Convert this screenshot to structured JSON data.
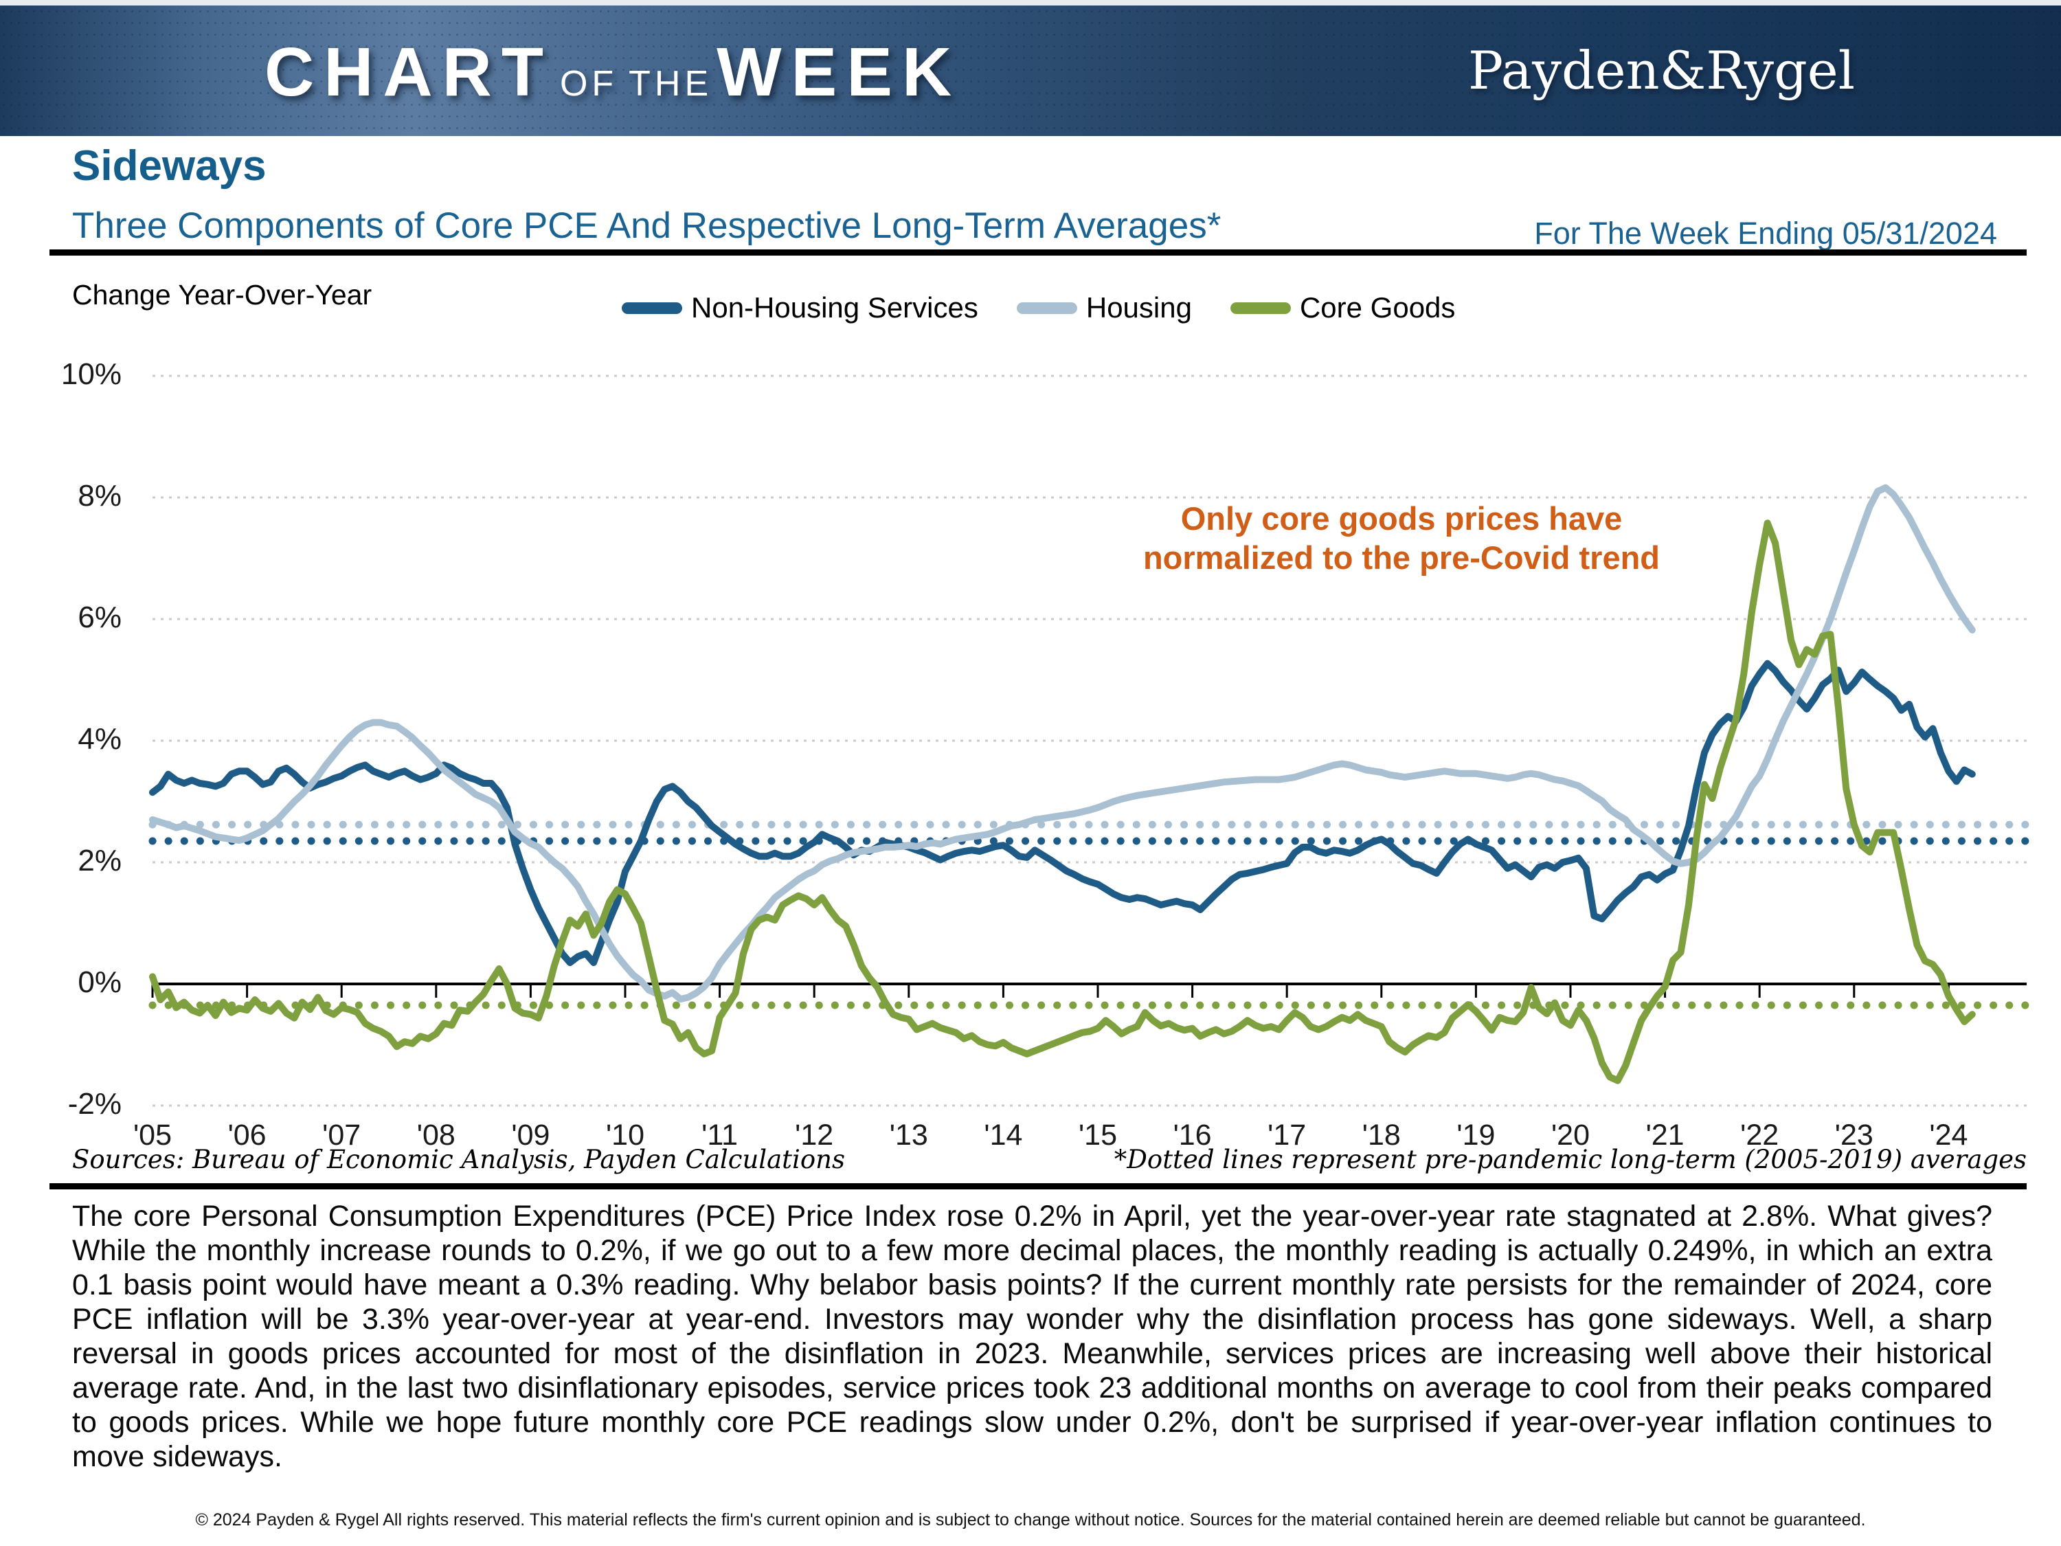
{
  "header": {
    "wordmark_chart": "CHART",
    "wordmark_of": "OF",
    "wordmark_the": "THE",
    "wordmark_week": "WEEK",
    "logo": "Payden&Rygel"
  },
  "title": {
    "main": "Sideways",
    "subtitle": "Three Components of Core PCE And Respective Long-Term Averages*",
    "week_ending": "For The Week Ending 05/31/2024",
    "accent_color": "#155E8C"
  },
  "annotation": {
    "line1": "Only core goods prices have",
    "line2": "normalized to the pre-Covid trend",
    "color": "#D05E17"
  },
  "sources": {
    "left": "Sources: Bureau of Economic Analysis, Payden Calculations",
    "right": "*Dotted lines represent pre-pandemic long-term (2005-2019) averages"
  },
  "body": {
    "text": "The core Personal Consumption Expenditures (PCE) Price Index rose 0.2% in April, yet the year-over-year rate stagnated at 2.8%. What gives? While the monthly increase rounds to 0.2%, if we go out to a few more decimal places, the monthly reading is actually 0.249%, in which an extra 0.1 basis point would have meant a 0.3% reading. Why belabor basis points? If the current monthly rate persists for the remainder of 2024, core PCE inflation will be 3.3% year-over-year at year-end. Investors may wonder why the disinflation process has gone sideways. Well, a sharp reversal in goods prices accounted for most of the disinflation in 2023. Meanwhile, services prices are increasing well above their historical average rate. And, in the last two disinflationary episodes, service prices took 23 additional months on average to cool from their peaks compared to goods prices. While we hope future monthly core PCE readings slow under 0.2%, don't be surprised if year-over-year inflation continues to move sideways."
  },
  "footer": {
    "text": "© 2024 Payden & Rygel All rights reserved. This material reflects the firm's current opinion and is subject to change without notice. Sources for the material contained herein are deemed reliable but cannot be guaranteed."
  },
  "chart_data": {
    "type": "line",
    "ylabel": "Change Year-Over-Year",
    "x_start_year": 2005,
    "x_step_months": 1,
    "x_tick_labels": [
      "'05",
      "'06",
      "'07",
      "'08",
      "'09",
      "'10",
      "'11",
      "'12",
      "'13",
      "'14",
      "'15",
      "'16",
      "'17",
      "'18",
      "'19",
      "'20",
      "'21",
      "'22",
      "'23",
      "'24"
    ],
    "y_tick_labels": [
      "10%",
      "8%",
      "6%",
      "4%",
      "2%",
      "0%",
      "-2%"
    ],
    "y_tick_values": [
      10,
      8,
      6,
      4,
      2,
      0,
      -2
    ],
    "ylim": [
      -2,
      10
    ],
    "grid": "dotted-horizontal",
    "legend_position": "top-center",
    "gridline_color": "#cbcbcb",
    "legend": [
      {
        "label": "Non-Housing Services",
        "color": "#1F5B87"
      },
      {
        "label": "Housing",
        "color": "#A9C0D3"
      },
      {
        "label": "Core Goods",
        "color": "#7FA03F"
      }
    ],
    "averages_note": "Dotted lines represent pre-pandemic long-term (2005-2019) averages",
    "averages": [
      {
        "name": "Non-Housing Services average",
        "value": 2.35,
        "color": "#1F5B87"
      },
      {
        "name": "Housing average",
        "value": 2.62,
        "color": "#A9C0D3"
      },
      {
        "name": "Core Goods average",
        "value": -0.35,
        "color": "#7FA03F"
      }
    ],
    "series": [
      {
        "name": "Non-Housing Services",
        "color": "#1F5B87",
        "values": [
          3.15,
          3.25,
          3.45,
          3.35,
          3.3,
          3.35,
          3.3,
          3.28,
          3.25,
          3.3,
          3.45,
          3.5,
          3.5,
          3.4,
          3.28,
          3.32,
          3.5,
          3.55,
          3.45,
          3.32,
          3.22,
          3.28,
          3.32,
          3.38,
          3.42,
          3.5,
          3.56,
          3.6,
          3.5,
          3.45,
          3.4,
          3.46,
          3.5,
          3.42,
          3.36,
          3.4,
          3.46,
          3.6,
          3.55,
          3.46,
          3.4,
          3.36,
          3.3,
          3.3,
          3.15,
          2.9,
          2.3,
          1.9,
          1.55,
          1.25,
          1.0,
          0.75,
          0.5,
          0.35,
          0.45,
          0.5,
          0.35,
          0.7,
          1.05,
          1.35,
          1.85,
          2.1,
          2.35,
          2.7,
          3.0,
          3.2,
          3.25,
          3.15,
          3.0,
          2.9,
          2.75,
          2.6,
          2.5,
          2.4,
          2.3,
          2.22,
          2.15,
          2.1,
          2.1,
          2.15,
          2.1,
          2.1,
          2.15,
          2.25,
          2.33,
          2.46,
          2.4,
          2.35,
          2.25,
          2.12,
          2.2,
          2.18,
          2.25,
          2.33,
          2.3,
          2.28,
          2.25,
          2.2,
          2.16,
          2.1,
          2.04,
          2.1,
          2.15,
          2.18,
          2.2,
          2.18,
          2.22,
          2.26,
          2.28,
          2.2,
          2.1,
          2.08,
          2.2,
          2.12,
          2.04,
          1.95,
          1.86,
          1.8,
          1.73,
          1.68,
          1.64,
          1.56,
          1.48,
          1.42,
          1.39,
          1.42,
          1.4,
          1.35,
          1.3,
          1.33,
          1.36,
          1.32,
          1.3,
          1.22,
          1.35,
          1.48,
          1.6,
          1.72,
          1.8,
          1.82,
          1.85,
          1.88,
          1.92,
          1.95,
          1.98,
          2.16,
          2.25,
          2.25,
          2.18,
          2.15,
          2.2,
          2.18,
          2.15,
          2.2,
          2.28,
          2.34,
          2.38,
          2.3,
          2.18,
          2.08,
          1.98,
          1.95,
          1.88,
          1.82,
          2.0,
          2.17,
          2.3,
          2.38,
          2.3,
          2.25,
          2.2,
          2.05,
          1.9,
          1.96,
          1.86,
          1.76,
          1.92,
          1.96,
          1.9,
          2.0,
          2.03,
          2.07,
          1.9,
          1.12,
          1.07,
          1.22,
          1.38,
          1.5,
          1.6,
          1.76,
          1.8,
          1.71,
          1.81,
          1.87,
          2.2,
          2.6,
          3.25,
          3.8,
          4.1,
          4.28,
          4.4,
          4.32,
          4.55,
          4.9,
          5.1,
          5.27,
          5.15,
          4.97,
          4.83,
          4.66,
          4.52,
          4.7,
          4.92,
          5.02,
          5.16,
          4.81,
          4.95,
          5.13,
          5.01,
          4.9,
          4.81,
          4.7,
          4.5,
          4.6,
          4.22,
          4.06,
          4.2,
          3.8,
          3.5,
          3.33,
          3.52,
          3.45
        ]
      },
      {
        "name": "Housing",
        "color": "#A9C0D3",
        "values": [
          2.7,
          2.66,
          2.62,
          2.57,
          2.6,
          2.56,
          2.52,
          2.47,
          2.42,
          2.4,
          2.38,
          2.36,
          2.4,
          2.46,
          2.52,
          2.62,
          2.72,
          2.86,
          3.0,
          3.12,
          3.26,
          3.42,
          3.6,
          3.76,
          3.92,
          4.06,
          4.18,
          4.26,
          4.3,
          4.3,
          4.26,
          4.24,
          4.15,
          4.05,
          3.92,
          3.8,
          3.66,
          3.52,
          3.42,
          3.32,
          3.22,
          3.12,
          3.06,
          3.0,
          2.9,
          2.7,
          2.5,
          2.4,
          2.31,
          2.25,
          2.12,
          2.0,
          1.9,
          1.76,
          1.6,
          1.36,
          1.15,
          0.9,
          0.66,
          0.46,
          0.3,
          0.15,
          0.05,
          -0.1,
          -0.16,
          -0.2,
          -0.14,
          -0.25,
          -0.22,
          -0.15,
          -0.05,
          0.1,
          0.33,
          0.5,
          0.66,
          0.82,
          0.96,
          1.12,
          1.26,
          1.42,
          1.52,
          1.62,
          1.72,
          1.8,
          1.86,
          1.96,
          2.02,
          2.06,
          2.12,
          2.16,
          2.18,
          2.2,
          2.22,
          2.25,
          2.25,
          2.26,
          2.28,
          2.26,
          2.3,
          2.32,
          2.3,
          2.34,
          2.38,
          2.4,
          2.42,
          2.44,
          2.46,
          2.5,
          2.55,
          2.6,
          2.62,
          2.66,
          2.7,
          2.72,
          2.74,
          2.76,
          2.78,
          2.8,
          2.83,
          2.86,
          2.9,
          2.95,
          3.0,
          3.04,
          3.07,
          3.1,
          3.12,
          3.14,
          3.16,
          3.18,
          3.2,
          3.22,
          3.24,
          3.26,
          3.28,
          3.3,
          3.32,
          3.33,
          3.34,
          3.35,
          3.36,
          3.36,
          3.36,
          3.36,
          3.38,
          3.4,
          3.44,
          3.48,
          3.52,
          3.56,
          3.6,
          3.62,
          3.6,
          3.56,
          3.52,
          3.5,
          3.48,
          3.44,
          3.42,
          3.4,
          3.42,
          3.44,
          3.46,
          3.48,
          3.5,
          3.48,
          3.46,
          3.46,
          3.46,
          3.44,
          3.42,
          3.4,
          3.38,
          3.4,
          3.44,
          3.46,
          3.44,
          3.4,
          3.36,
          3.34,
          3.3,
          3.26,
          3.18,
          3.09,
          3.01,
          2.87,
          2.78,
          2.7,
          2.54,
          2.45,
          2.35,
          2.23,
          2.12,
          2.02,
          1.98,
          2.0,
          2.05,
          2.16,
          2.3,
          2.41,
          2.58,
          2.75,
          3.0,
          3.25,
          3.42,
          3.7,
          4.02,
          4.32,
          4.58,
          4.84,
          5.1,
          5.38,
          5.68,
          6.0,
          6.38,
          6.76,
          7.12,
          7.5,
          7.85,
          8.1,
          8.16,
          8.05,
          7.87,
          7.67,
          7.42,
          7.16,
          6.92,
          6.66,
          6.42,
          6.2,
          6.0,
          5.82
        ]
      },
      {
        "name": "Core Goods",
        "color": "#7FA03F",
        "values": [
          0.12,
          -0.26,
          -0.13,
          -0.39,
          -0.3,
          -0.43,
          -0.48,
          -0.35,
          -0.52,
          -0.3,
          -0.47,
          -0.4,
          -0.43,
          -0.26,
          -0.4,
          -0.45,
          -0.32,
          -0.48,
          -0.56,
          -0.3,
          -0.42,
          -0.22,
          -0.44,
          -0.5,
          -0.39,
          -0.42,
          -0.47,
          -0.65,
          -0.73,
          -0.78,
          -0.86,
          -1.03,
          -0.95,
          -0.98,
          -0.86,
          -0.9,
          -0.82,
          -0.65,
          -0.68,
          -0.43,
          -0.45,
          -0.3,
          -0.17,
          0.05,
          0.25,
          0.0,
          -0.4,
          -0.48,
          -0.5,
          -0.56,
          -0.2,
          0.3,
          0.7,
          1.05,
          0.95,
          1.15,
          0.8,
          1.0,
          1.35,
          1.55,
          1.48,
          1.25,
          1.0,
          0.45,
          -0.1,
          -0.6,
          -0.66,
          -0.9,
          -0.8,
          -1.05,
          -1.15,
          -1.1,
          -0.55,
          -0.35,
          -0.15,
          0.5,
          0.9,
          1.05,
          1.1,
          1.05,
          1.3,
          1.38,
          1.45,
          1.4,
          1.3,
          1.42,
          1.22,
          1.05,
          0.95,
          0.65,
          0.3,
          0.1,
          -0.05,
          -0.3,
          -0.5,
          -0.55,
          -0.58,
          -0.75,
          -0.7,
          -0.65,
          -0.72,
          -0.76,
          -0.8,
          -0.9,
          -0.85,
          -0.95,
          -1.0,
          -1.02,
          -0.96,
          -1.05,
          -1.1,
          -1.15,
          -1.1,
          -1.05,
          -1.0,
          -0.95,
          -0.9,
          -0.85,
          -0.8,
          -0.78,
          -0.73,
          -0.6,
          -0.7,
          -0.82,
          -0.75,
          -0.7,
          -0.47,
          -0.6,
          -0.69,
          -0.65,
          -0.72,
          -0.76,
          -0.73,
          -0.86,
          -0.8,
          -0.75,
          -0.82,
          -0.78,
          -0.7,
          -0.6,
          -0.68,
          -0.73,
          -0.7,
          -0.75,
          -0.6,
          -0.47,
          -0.55,
          -0.7,
          -0.75,
          -0.7,
          -0.62,
          -0.55,
          -0.6,
          -0.5,
          -0.6,
          -0.65,
          -0.7,
          -0.95,
          -1.05,
          -1.12,
          -1.0,
          -0.92,
          -0.85,
          -0.88,
          -0.8,
          -0.56,
          -0.45,
          -0.34,
          -0.45,
          -0.6,
          -0.76,
          -0.55,
          -0.6,
          -0.62,
          -0.47,
          -0.06,
          -0.39,
          -0.49,
          -0.31,
          -0.6,
          -0.68,
          -0.43,
          -0.6,
          -0.89,
          -1.3,
          -1.53,
          -1.59,
          -1.34,
          -0.97,
          -0.6,
          -0.39,
          -0.2,
          -0.05,
          0.39,
          0.52,
          1.3,
          2.41,
          3.28,
          3.05,
          3.55,
          3.95,
          4.35,
          5.1,
          6.1,
          6.9,
          7.58,
          7.25,
          6.45,
          5.65,
          5.25,
          5.5,
          5.42,
          5.72,
          5.75,
          4.55,
          3.21,
          2.62,
          2.27,
          2.17,
          2.49,
          2.49,
          2.49,
          1.88,
          1.23,
          0.64,
          0.38,
          0.32,
          0.15,
          -0.2,
          -0.42,
          -0.62,
          -0.5
        ]
      }
    ]
  }
}
